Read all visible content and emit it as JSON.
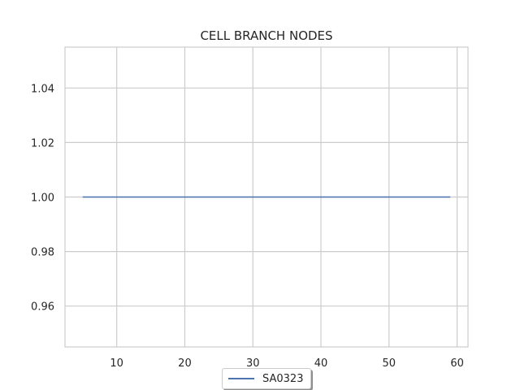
{
  "chart_data": {
    "type": "line",
    "title": "CELL BRANCH NODES",
    "xlabel": "",
    "ylabel": "",
    "xlim": [
      2.4,
      61.6
    ],
    "ylim": [
      0.945,
      1.055
    ],
    "xticks": [
      10,
      20,
      30,
      40,
      50,
      60
    ],
    "yticks": [
      0.96,
      0.98,
      1.0,
      1.02,
      1.04
    ],
    "yticks_labels": [
      "0.96",
      "0.98",
      "1.00",
      "1.02",
      "1.04"
    ],
    "grid": true,
    "legend_position": "bottom-center",
    "series": [
      {
        "name": "SA0323",
        "color": "#4c72b0",
        "x": [
          5,
          59
        ],
        "y": [
          1.0,
          1.0
        ]
      }
    ]
  }
}
